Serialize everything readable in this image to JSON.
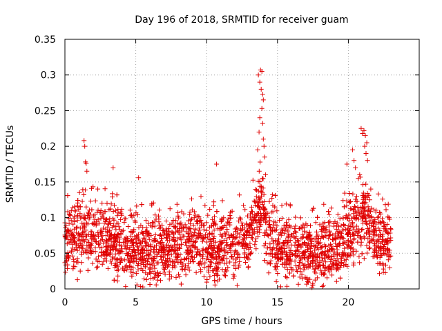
{
  "chart_data": {
    "type": "scatter",
    "title": "Day 196 of 2018, SRMTID for receiver guam",
    "xlabel": "GPS time / hours",
    "ylabel": "SRMTID / TECUs",
    "xlim": [
      0,
      25
    ],
    "ylim": [
      0,
      0.35
    ],
    "x_ticks": [
      0,
      5,
      10,
      15,
      20
    ],
    "x_tick_labels": [
      "0",
      "5",
      "10",
      "15",
      "20"
    ],
    "y_ticks": [
      0,
      0.05,
      0.1,
      0.15,
      0.2,
      0.25,
      0.3,
      0.35
    ],
    "y_tick_labels": [
      "0",
      "0.05",
      "0.1",
      "0.15",
      "0.2",
      "0.25",
      "0.3",
      "0.35"
    ],
    "grid": true,
    "marker": "+",
    "series_color": "#e00000",
    "x_range_hours": [
      0,
      23
    ],
    "baseline_profile": [
      [
        0,
        0.06
      ],
      [
        1,
        0.075
      ],
      [
        2,
        0.075
      ],
      [
        3,
        0.07
      ],
      [
        4,
        0.06
      ],
      [
        5,
        0.055
      ],
      [
        6,
        0.05
      ],
      [
        7,
        0.055
      ],
      [
        8,
        0.06
      ],
      [
        9,
        0.07
      ],
      [
        10,
        0.06
      ],
      [
        11,
        0.055
      ],
      [
        12,
        0.06
      ],
      [
        13,
        0.075
      ],
      [
        13.9,
        0.12
      ],
      [
        14.3,
        0.075
      ],
      [
        15,
        0.06
      ],
      [
        16,
        0.055
      ],
      [
        17,
        0.05
      ],
      [
        18,
        0.05
      ],
      [
        19,
        0.055
      ],
      [
        19.5,
        0.06
      ],
      [
        20.2,
        0.09
      ],
      [
        21,
        0.1
      ],
      [
        21.6,
        0.09
      ],
      [
        22,
        0.07
      ],
      [
        23,
        0.065
      ]
    ],
    "notable_points": [
      [
        1.35,
        0.208
      ],
      [
        1.4,
        0.2
      ],
      [
        1.45,
        0.178
      ],
      [
        1.5,
        0.176
      ],
      [
        1.55,
        0.165
      ],
      [
        3.4,
        0.17
      ],
      [
        5.2,
        0.156
      ],
      [
        10.7,
        0.175
      ],
      [
        13.65,
        0.3
      ],
      [
        13.75,
        0.29
      ],
      [
        13.8,
        0.307
      ],
      [
        13.85,
        0.28
      ],
      [
        13.9,
        0.305
      ],
      [
        13.95,
        0.273
      ],
      [
        14.0,
        0.265
      ],
      [
        13.9,
        0.253
      ],
      [
        13.95,
        0.232
      ],
      [
        14.0,
        0.21
      ],
      [
        14.05,
        0.2
      ],
      [
        13.7,
        0.22
      ],
      [
        13.75,
        0.24
      ],
      [
        14.1,
        0.185
      ],
      [
        14.15,
        0.16
      ],
      [
        13.6,
        0.195
      ],
      [
        19.9,
        0.175
      ],
      [
        20.3,
        0.195
      ],
      [
        20.4,
        0.18
      ],
      [
        20.5,
        0.17
      ],
      [
        20.9,
        0.225
      ],
      [
        21.0,
        0.218
      ],
      [
        21.1,
        0.222
      ],
      [
        21.15,
        0.2
      ],
      [
        21.2,
        0.215
      ],
      [
        21.3,
        0.205
      ],
      [
        21.25,
        0.19
      ],
      [
        20.8,
        0.16
      ],
      [
        20.7,
        0.155
      ],
      [
        21.35,
        0.18
      ]
    ]
  }
}
